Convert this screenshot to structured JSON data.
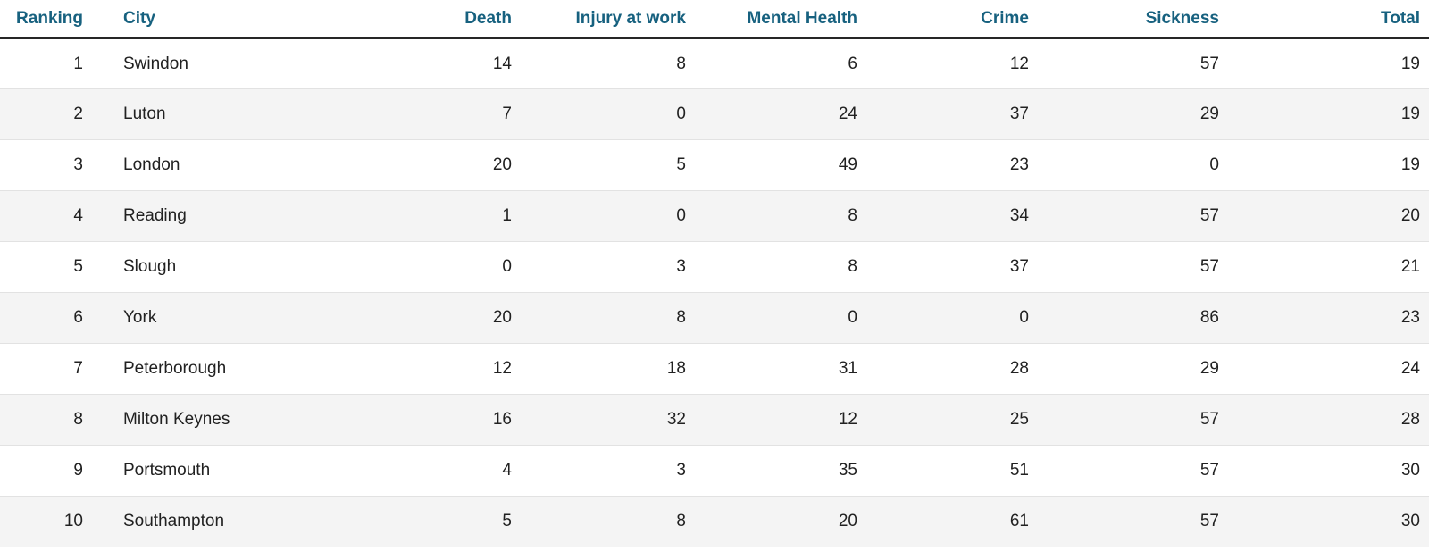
{
  "colors": {
    "header_text": "#17617f",
    "body_text": "#212121",
    "stripe": "#f4f4f4",
    "row_border": "#e2e2e2",
    "header_border": "#262626",
    "background": "#ffffff"
  },
  "table": {
    "columns": [
      {
        "key": "ranking",
        "label": "Ranking",
        "align": "right"
      },
      {
        "key": "city",
        "label": "City",
        "align": "left"
      },
      {
        "key": "death",
        "label": "Death",
        "align": "right"
      },
      {
        "key": "injury_at_work",
        "label": "Injury at work",
        "align": "right"
      },
      {
        "key": "mental_health",
        "label": "Mental Health",
        "align": "right"
      },
      {
        "key": "crime",
        "label": "Crime",
        "align": "right"
      },
      {
        "key": "sickness",
        "label": "Sickness",
        "align": "right"
      },
      {
        "key": "total",
        "label": "Total",
        "align": "right"
      }
    ],
    "rows": [
      [
        "1",
        "Swindon",
        "14",
        "8",
        "6",
        "12",
        "57",
        "19"
      ],
      [
        "2",
        "Luton",
        "7",
        "0",
        "24",
        "37",
        "29",
        "19"
      ],
      [
        "3",
        "London",
        "20",
        "5",
        "49",
        "23",
        "0",
        "19"
      ],
      [
        "4",
        "Reading",
        "1",
        "0",
        "8",
        "34",
        "57",
        "20"
      ],
      [
        "5",
        "Slough",
        "0",
        "3",
        "8",
        "37",
        "57",
        "21"
      ],
      [
        "6",
        "York",
        "20",
        "8",
        "0",
        "0",
        "86",
        "23"
      ],
      [
        "7",
        "Peterborough",
        "12",
        "18",
        "31",
        "28",
        "29",
        "24"
      ],
      [
        "8",
        "Milton Keynes",
        "16",
        "32",
        "12",
        "25",
        "57",
        "28"
      ],
      [
        "9",
        "Portsmouth",
        "4",
        "3",
        "35",
        "51",
        "57",
        "30"
      ],
      [
        "10",
        "Southampton",
        "5",
        "8",
        "20",
        "61",
        "57",
        "30"
      ]
    ]
  }
}
